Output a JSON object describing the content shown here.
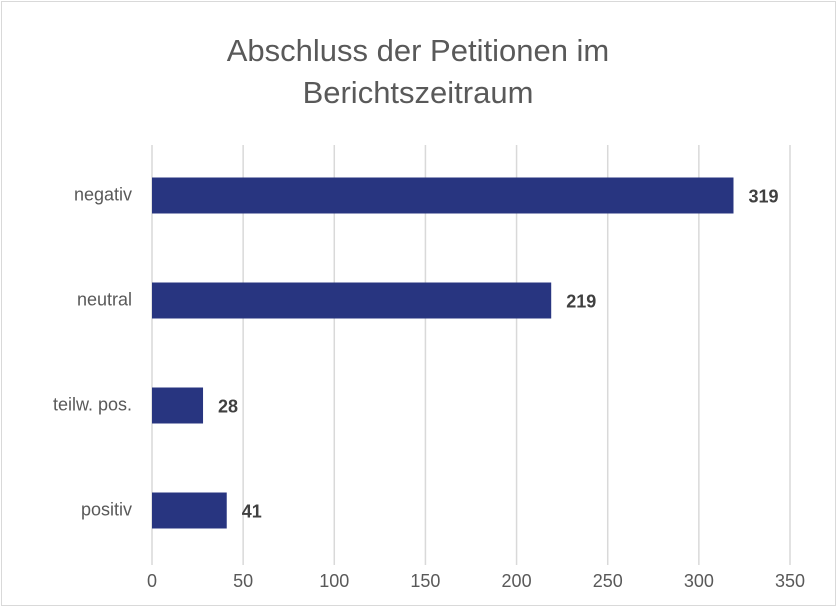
{
  "chart_data": {
    "type": "hbar",
    "title": "Abschluss der Petitionen im Berichtszeitraum",
    "categories": [
      "negativ",
      "neutral",
      "teilw. pos.",
      "positiv"
    ],
    "values": [
      319,
      219,
      28,
      41
    ],
    "color": "#283580",
    "xlim": [
      0,
      350
    ],
    "xticks": [
      0,
      50,
      100,
      150,
      200,
      250,
      300,
      350
    ],
    "grid": true
  }
}
